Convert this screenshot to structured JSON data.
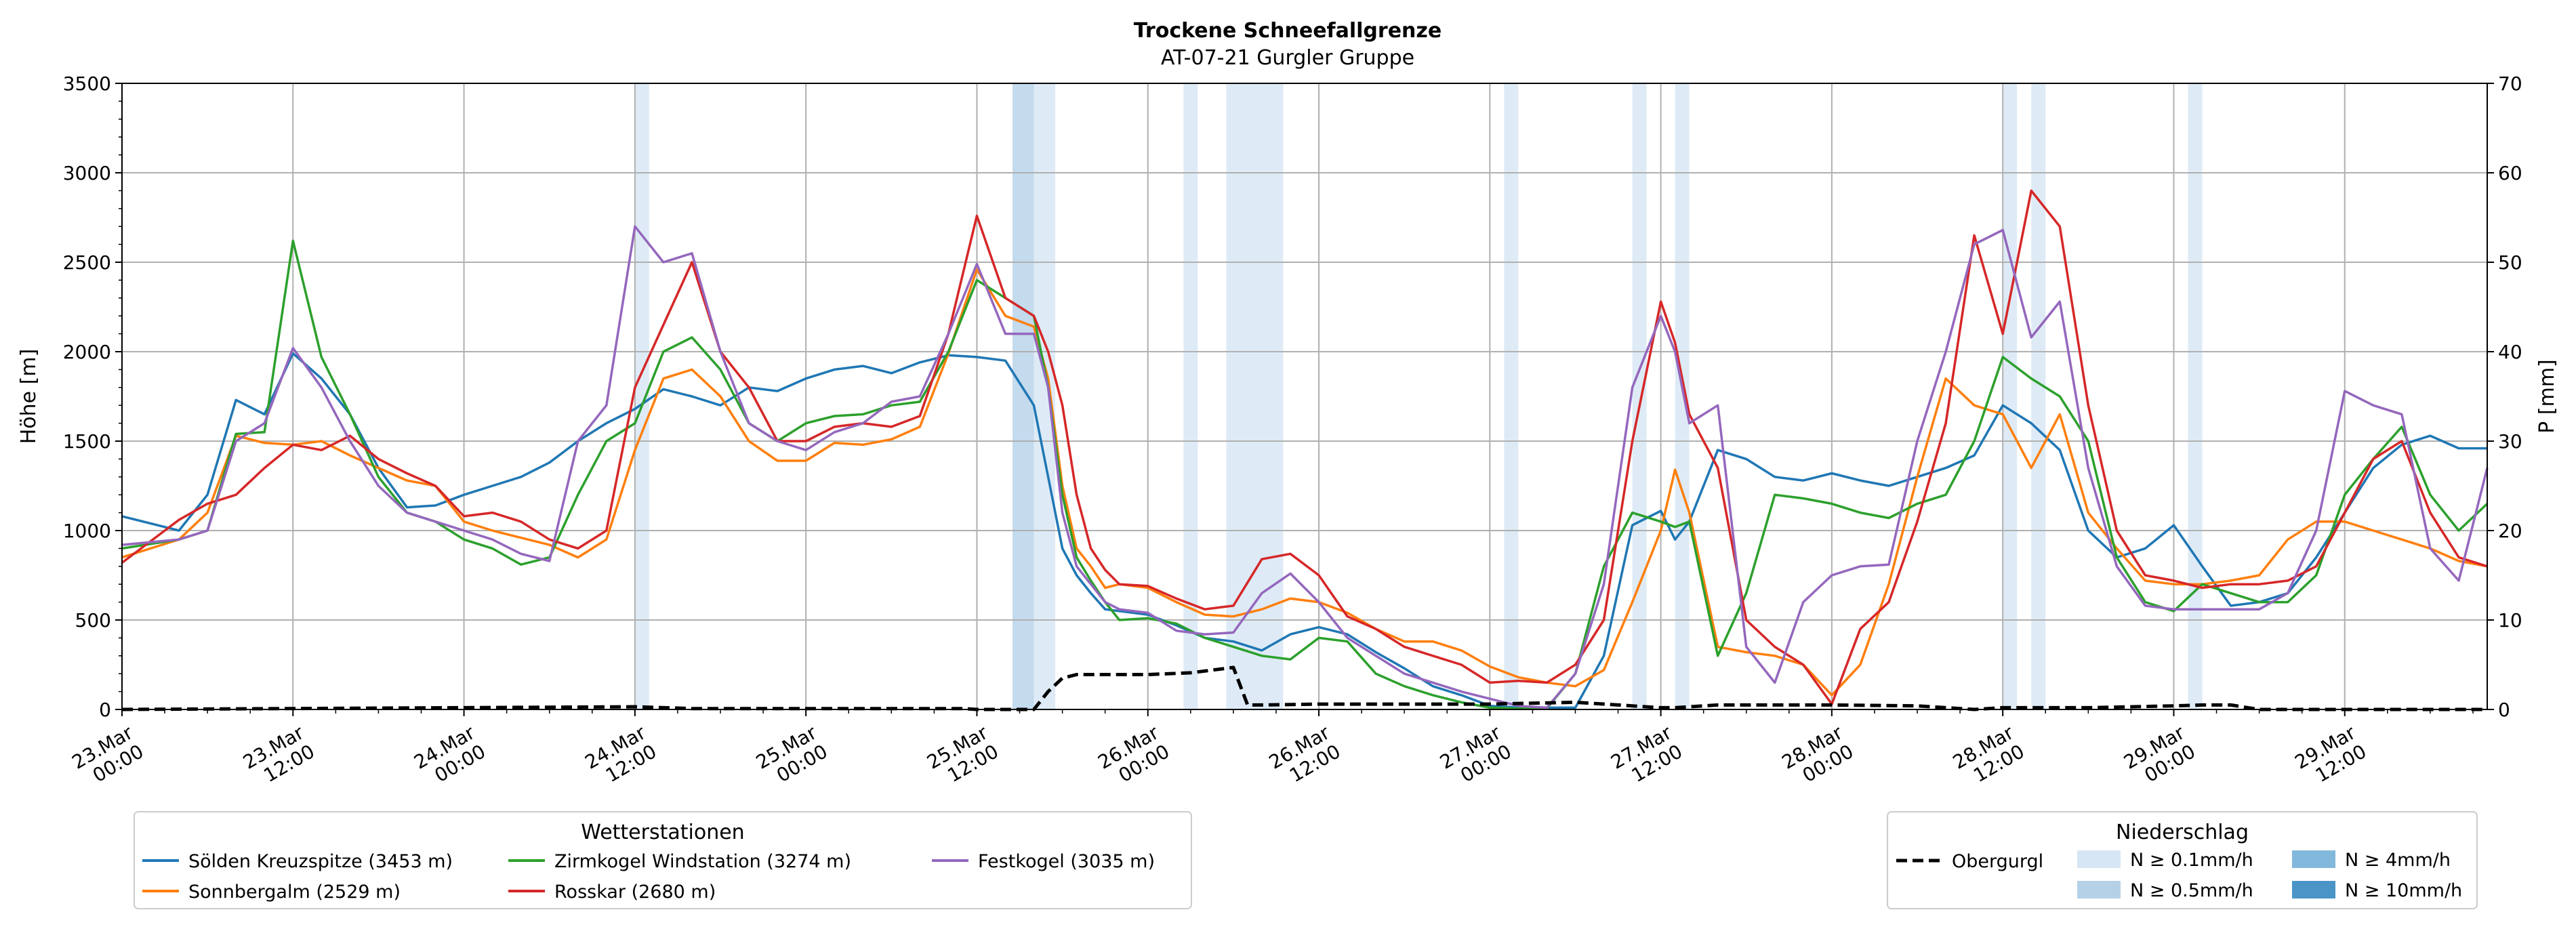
{
  "chart_data": {
    "type": "line",
    "title": "Trockene Schneefallgrenze",
    "subtitle": "AT-07-21 Gurgler Gruppe",
    "ylabel": "Höhe [m]",
    "y2label": "P [mm]",
    "ylim": [
      0,
      3500
    ],
    "y2lim": [
      0,
      70
    ],
    "yticks": [
      0,
      500,
      1000,
      1500,
      2000,
      2500,
      3000,
      3500
    ],
    "y2ticks": [
      0,
      10,
      20,
      30,
      40,
      50,
      60,
      70
    ],
    "xlim_hours": [
      0,
      166
    ],
    "x_unit": "hours since 23.Mar 00:00",
    "xticks": [
      {
        "h": 0,
        "l1": "23.Mar",
        "l2": "00:00"
      },
      {
        "h": 12,
        "l1": "23.Mar",
        "l2": "12:00"
      },
      {
        "h": 24,
        "l1": "24.Mar",
        "l2": "00:00"
      },
      {
        "h": 36,
        "l1": "24.Mar",
        "l2": "12:00"
      },
      {
        "h": 48,
        "l1": "25.Mar",
        "l2": "00:00"
      },
      {
        "h": 60,
        "l1": "25.Mar",
        "l2": "12:00"
      },
      {
        "h": 72,
        "l1": "26.Mar",
        "l2": "00:00"
      },
      {
        "h": 84,
        "l1": "26.Mar",
        "l2": "12:00"
      },
      {
        "h": 96,
        "l1": "27.Mar",
        "l2": "00:00"
      },
      {
        "h": 108,
        "l1": "27.Mar",
        "l2": "12:00"
      },
      {
        "h": 120,
        "l1": "28.Mar",
        "l2": "00:00"
      },
      {
        "h": 132,
        "l1": "28.Mar",
        "l2": "12:00"
      },
      {
        "h": 144,
        "l1": "29.Mar",
        "l2": "00:00"
      },
      {
        "h": 156,
        "l1": "29.Mar",
        "l2": "12:00"
      }
    ],
    "grid": true,
    "series": [
      {
        "name": "Sölden Kreuzspitze (3453 m)",
        "color": "#1f77b4",
        "x": [
          0,
          4,
          6,
          8,
          10,
          12,
          14,
          16,
          18,
          20,
          22,
          24,
          26,
          28,
          30,
          32,
          34,
          36,
          38,
          40,
          42,
          44,
          46,
          48,
          50,
          52,
          54,
          56,
          58,
          60,
          62,
          64,
          65,
          66,
          67,
          68,
          69,
          70,
          72,
          74,
          76,
          78,
          80,
          82,
          84,
          86,
          88,
          90,
          92,
          94,
          96,
          98,
          100,
          102,
          104,
          106,
          108,
          109,
          110,
          112,
          114,
          116,
          118,
          120,
          122,
          124,
          126,
          128,
          130,
          132,
          134,
          136,
          138,
          140,
          142,
          144,
          146,
          148,
          150,
          152,
          154,
          156,
          158,
          160,
          162,
          164,
          166
        ],
        "values": [
          1080,
          1000,
          1200,
          1730,
          1650,
          1990,
          1850,
          1650,
          1350,
          1130,
          1140,
          1200,
          1250,
          1300,
          1380,
          1500,
          1600,
          1680,
          1790,
          1750,
          1700,
          1800,
          1780,
          1850,
          1900,
          1920,
          1880,
          1940,
          1980,
          1970,
          1950,
          1700,
          1300,
          900,
          750,
          650,
          560,
          550,
          530,
          470,
          400,
          380,
          330,
          420,
          460,
          420,
          320,
          230,
          130,
          80,
          20,
          10,
          10,
          10,
          300,
          1030,
          1110,
          950,
          1050,
          1450,
          1400,
          1300,
          1280,
          1320,
          1280,
          1250,
          1300,
          1350,
          1420,
          1700,
          1600,
          1450,
          1000,
          850,
          900,
          1030,
          800,
          580,
          600,
          650,
          850,
          1100,
          1350,
          1480,
          1530,
          1460,
          1460
        ]
      },
      {
        "name": "Sonnbergalm (2529 m)",
        "color": "#ff7f0e",
        "x": [
          0,
          4,
          6,
          8,
          10,
          12,
          14,
          16,
          18,
          20,
          22,
          24,
          26,
          28,
          30,
          32,
          34,
          36,
          38,
          40,
          42,
          44,
          46,
          48,
          50,
          52,
          54,
          56,
          58,
          60,
          62,
          64,
          65,
          66,
          67,
          68,
          69,
          70,
          72,
          74,
          76,
          78,
          80,
          82,
          84,
          86,
          88,
          90,
          92,
          94,
          96,
          98,
          100,
          102,
          104,
          106,
          108,
          109,
          110,
          112,
          114,
          116,
          118,
          120,
          122,
          124,
          126,
          128,
          130,
          132,
          134,
          136,
          138,
          140,
          142,
          144,
          146,
          148,
          150,
          152,
          154,
          156,
          158,
          160,
          162,
          164,
          166
        ],
        "values": [
          850,
          950,
          1100,
          1530,
          1490,
          1480,
          1500,
          1420,
          1350,
          1280,
          1250,
          1050,
          1000,
          960,
          920,
          850,
          950,
          1450,
          1850,
          1900,
          1750,
          1500,
          1390,
          1390,
          1490,
          1480,
          1510,
          1580,
          1990,
          2460,
          2200,
          2140,
          1850,
          1250,
          900,
          800,
          680,
          700,
          680,
          600,
          530,
          520,
          560,
          620,
          600,
          540,
          450,
          380,
          380,
          330,
          240,
          180,
          150,
          130,
          220,
          600,
          1000,
          1340,
          1100,
          350,
          320,
          300,
          250,
          80,
          250,
          700,
          1300,
          1850,
          1700,
          1650,
          1350,
          1650,
          1100,
          900,
          720,
          700,
          700,
          720,
          750,
          950,
          1050,
          1050,
          1000,
          950,
          900,
          830,
          800
        ]
      },
      {
        "name": "Zirmkogel Windstation (3274 m)",
        "color": "#2ca02c",
        "x": [
          0,
          4,
          6,
          8,
          10,
          12,
          14,
          16,
          18,
          20,
          22,
          24,
          26,
          28,
          30,
          32,
          34,
          36,
          38,
          40,
          42,
          44,
          46,
          48,
          50,
          52,
          54,
          56,
          58,
          60,
          62,
          64,
          65,
          66,
          67,
          68,
          69,
          70,
          72,
          74,
          76,
          78,
          80,
          82,
          84,
          86,
          88,
          90,
          92,
          94,
          96,
          98,
          100,
          102,
          104,
          106,
          108,
          109,
          110,
          112,
          114,
          116,
          118,
          120,
          122,
          124,
          126,
          128,
          130,
          132,
          134,
          136,
          138,
          140,
          142,
          144,
          146,
          148,
          150,
          152,
          154,
          156,
          158,
          160,
          162,
          164,
          166
        ],
        "values": [
          900,
          950,
          1000,
          1540,
          1550,
          2620,
          1970,
          1650,
          1300,
          1100,
          1050,
          950,
          900,
          810,
          850,
          1200,
          1500,
          1600,
          2000,
          2080,
          1900,
          1600,
          1500,
          1600,
          1640,
          1650,
          1700,
          1720,
          2000,
          2400,
          2300,
          2200,
          1800,
          1200,
          850,
          720,
          600,
          500,
          510,
          480,
          400,
          350,
          300,
          280,
          400,
          380,
          200,
          130,
          80,
          40,
          10,
          5,
          5,
          200,
          800,
          1100,
          1050,
          1020,
          1050,
          300,
          650,
          1200,
          1180,
          1150,
          1100,
          1070,
          1150,
          1200,
          1500,
          1970,
          1850,
          1750,
          1500,
          850,
          600,
          550,
          700,
          650,
          600,
          600,
          750,
          1200,
          1400,
          1580,
          1200,
          1000,
          1150
        ]
      },
      {
        "name": "Rosskar (2680 m)",
        "color": "#d62728",
        "x": [
          0,
          4,
          6,
          8,
          10,
          12,
          14,
          16,
          18,
          20,
          22,
          24,
          26,
          28,
          30,
          32,
          34,
          36,
          38,
          40,
          42,
          44,
          46,
          48,
          50,
          52,
          54,
          56,
          58,
          60,
          62,
          64,
          65,
          66,
          67,
          68,
          69,
          70,
          72,
          74,
          76,
          78,
          80,
          82,
          84,
          86,
          88,
          90,
          92,
          94,
          96,
          98,
          100,
          102,
          104,
          106,
          108,
          109,
          110,
          112,
          114,
          116,
          118,
          120,
          122,
          124,
          126,
          128,
          130,
          132,
          134,
          136,
          138,
          140,
          142,
          144,
          146,
          148,
          150,
          152,
          154,
          156,
          158,
          160,
          162,
          164,
          166
        ],
        "values": [
          820,
          1060,
          1150,
          1200,
          1350,
          1480,
          1450,
          1530,
          1400,
          1320,
          1250,
          1080,
          1100,
          1050,
          950,
          900,
          1000,
          1800,
          2150,
          2500,
          2000,
          1800,
          1500,
          1500,
          1580,
          1600,
          1580,
          1640,
          2100,
          2760,
          2300,
          2200,
          2000,
          1700,
          1200,
          900,
          780,
          700,
          690,
          620,
          560,
          580,
          840,
          870,
          750,
          520,
          450,
          350,
          300,
          250,
          150,
          160,
          150,
          250,
          500,
          1500,
          2280,
          2050,
          1650,
          1350,
          500,
          350,
          250,
          30,
          450,
          600,
          1050,
          1600,
          2650,
          2100,
          2900,
          2700,
          1700,
          1000,
          750,
          720,
          680,
          700,
          700,
          720,
          800,
          1100,
          1400,
          1500,
          1100,
          850,
          800
        ]
      },
      {
        "name": "Festkogel (3035 m)",
        "color": "#9467bd",
        "x": [
          0,
          4,
          6,
          8,
          10,
          12,
          14,
          16,
          18,
          20,
          22,
          24,
          26,
          28,
          30,
          32,
          34,
          36,
          38,
          40,
          42,
          44,
          46,
          48,
          50,
          52,
          54,
          56,
          58,
          60,
          62,
          64,
          65,
          66,
          67,
          68,
          69,
          70,
          72,
          74,
          76,
          78,
          80,
          82,
          84,
          86,
          88,
          90,
          92,
          94,
          96,
          98,
          100,
          102,
          104,
          106,
          108,
          109,
          110,
          112,
          114,
          116,
          118,
          120,
          122,
          124,
          126,
          128,
          130,
          132,
          134,
          136,
          138,
          140,
          142,
          144,
          146,
          148,
          150,
          152,
          154,
          156,
          158,
          160,
          162,
          164,
          166
        ],
        "values": [
          920,
          950,
          1000,
          1500,
          1600,
          2020,
          1800,
          1500,
          1250,
          1100,
          1050,
          1000,
          950,
          870,
          830,
          1500,
          1700,
          2700,
          2500,
          2550,
          2000,
          1600,
          1500,
          1450,
          1550,
          1600,
          1720,
          1750,
          2100,
          2490,
          2100,
          2100,
          1800,
          1100,
          800,
          700,
          600,
          560,
          540,
          440,
          420,
          430,
          650,
          760,
          600,
          400,
          300,
          200,
          150,
          100,
          60,
          20,
          10,
          200,
          700,
          1800,
          2200,
          2000,
          1600,
          1700,
          350,
          150,
          600,
          750,
          800,
          810,
          1500,
          2000,
          2600,
          2680,
          2080,
          2280,
          1350,
          800,
          580,
          560,
          560,
          560,
          560,
          650,
          1000,
          1780,
          1700,
          1650,
          900,
          720,
          1350
        ]
      },
      {
        "name": "Obergurgl",
        "color": "#000000",
        "dashed": true,
        "x": [
          0,
          36,
          40,
          59,
          60,
          61,
          62,
          63,
          64,
          65,
          66,
          67,
          68,
          70,
          72,
          75,
          78,
          79,
          80,
          84,
          90,
          96,
          102,
          108,
          109,
          112,
          120,
          126,
          130,
          132,
          138,
          144,
          146,
          148,
          150,
          166
        ],
        "values": [
          0,
          0.3,
          0.1,
          0.1,
          0,
          0,
          0,
          0,
          0,
          2,
          3.5,
          3.9,
          3.9,
          3.9,
          3.9,
          4.1,
          4.7,
          0.5,
          0.5,
          0.6,
          0.6,
          0.6,
          0.8,
          0.2,
          0.2,
          0.5,
          0.5,
          0.4,
          0,
          0.2,
          0.2,
          0.4,
          0.5,
          0.5,
          0,
          0
        ]
      }
    ],
    "precip_bands": [
      {
        "start": 36,
        "end": 37,
        "level": 1
      },
      {
        "start": 62.5,
        "end": 64,
        "level": 2
      },
      {
        "start": 64,
        "end": 65.5,
        "level": 1
      },
      {
        "start": 74.5,
        "end": 75.5,
        "level": 1
      },
      {
        "start": 77.5,
        "end": 81.5,
        "level": 1
      },
      {
        "start": 97,
        "end": 98,
        "level": 1
      },
      {
        "start": 106,
        "end": 107,
        "level": 1
      },
      {
        "start": 109,
        "end": 110,
        "level": 1
      },
      {
        "start": 132,
        "end": 133,
        "level": 1
      },
      {
        "start": 134,
        "end": 135,
        "level": 1
      },
      {
        "start": 145,
        "end": 146,
        "level": 1
      }
    ],
    "legend_stations": {
      "title": "Wetterstationen",
      "placement": "bottom-left"
    },
    "legend_precip": {
      "title": "Niederschlag",
      "placement": "bottom-right",
      "items": [
        {
          "label": "N ≥ 0.1mm/h",
          "color": "#d6e6f4"
        },
        {
          "label": "N ≥ 0.5mm/h",
          "color": "#b5d1e8"
        },
        {
          "label": "N ≥ 4mm/h",
          "color": "#82b8dc"
        },
        {
          "label": "N ≥ 10mm/h",
          "color": "#4a94c8"
        }
      ]
    }
  }
}
